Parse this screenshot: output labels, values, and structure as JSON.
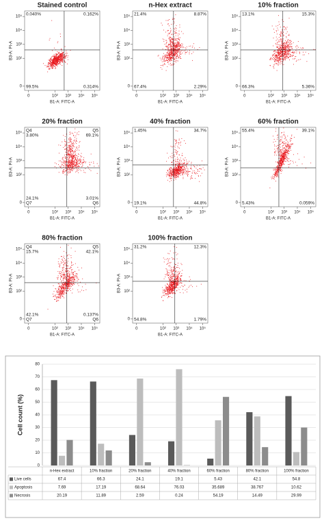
{
  "chart_data": [
    {
      "type": "flow",
      "title": "Stained control",
      "xlabel": "B1-A: FITC-A",
      "ylabel": "B3-A: PI-A",
      "xlim": [
        -0.3,
        5.4
      ],
      "ylim": [
        -0.3,
        5.4
      ],
      "xticks": [
        0,
        {
          "value": 2,
          "label": "10²"
        },
        {
          "value": 3,
          "label": "10³"
        },
        {
          "value": 4,
          "label": "10⁴"
        },
        {
          "value": 5,
          "label": "10⁵"
        }
      ],
      "yticks": [
        0,
        {
          "value": 2,
          "label": "10²"
        },
        {
          "value": 3,
          "label": "10³"
        },
        {
          "value": 4,
          "label": "10⁴"
        },
        {
          "value": 5,
          "label": "10⁵"
        }
      ],
      "gate": [
        2.7,
        2.6
      ],
      "quadrants": {
        "ul": "0.040%",
        "ur": "0.162%",
        "ll": "99.5%",
        "lr": "0.314%"
      }
    },
    {
      "type": "flow",
      "title": "n-Hex extract",
      "xlabel": "B1-A: FITC-A",
      "ylabel": "B3-A: PI-A",
      "xlim": [
        -0.3,
        5.4
      ],
      "ylim": [
        -0.3,
        5.4
      ],
      "xticks": [
        0,
        {
          "value": 2,
          "label": "10²"
        },
        {
          "value": 3,
          "label": "10³"
        },
        {
          "value": 4,
          "label": "10⁴"
        },
        {
          "value": 5,
          "label": "10⁵"
        }
      ],
      "yticks": [
        0,
        {
          "value": 2,
          "label": "10²"
        },
        {
          "value": 3,
          "label": "10³"
        },
        {
          "value": 4,
          "label": "10⁴"
        },
        {
          "value": 5,
          "label": "10⁵"
        }
      ],
      "gate": [
        2.8,
        2.6
      ],
      "quadrants": {
        "ul": "21.4%",
        "ur": "8.87%",
        "ll": "67.4%",
        "lr": "2.29%"
      }
    },
    {
      "type": "flow",
      "title": "10% fraction",
      "xlabel": "B1-A: FITC-A",
      "ylabel": "B3-A: PI-A",
      "xlim": [
        -0.3,
        5.4
      ],
      "ylim": [
        -0.3,
        5.4
      ],
      "xticks": [
        0,
        {
          "value": 2,
          "label": "10²"
        },
        {
          "value": 3,
          "label": "10³"
        },
        {
          "value": 4,
          "label": "10⁴"
        },
        {
          "value": 5,
          "label": "10⁵"
        }
      ],
      "yticks": [
        0,
        {
          "value": 2,
          "label": "10²"
        },
        {
          "value": 3,
          "label": "10³"
        },
        {
          "value": 4,
          "label": "10⁴"
        },
        {
          "value": 5,
          "label": "10⁵"
        }
      ],
      "gate": [
        2.9,
        2.6
      ],
      "quadrants": {
        "ul": "13.1%",
        "ur": "15.3%",
        "ll": "66.3%",
        "lr": "5.36%"
      }
    },
    {
      "type": "flow",
      "title": "20% fraction",
      "xlabel": "B1-A: FITC-A",
      "ylabel": "B3-A: PI-A",
      "xlim": [
        -0.3,
        5.4
      ],
      "ylim": [
        -0.3,
        5.4
      ],
      "xticks": [
        0,
        {
          "value": 2,
          "label": "10²"
        },
        {
          "value": 3,
          "label": "10³"
        },
        {
          "value": 4,
          "label": "10⁴"
        },
        {
          "value": 5,
          "label": "10⁵"
        }
      ],
      "yticks": [
        0,
        {
          "value": 2,
          "label": "10²"
        },
        {
          "value": 3,
          "label": "10³"
        },
        {
          "value": 4,
          "label": "10⁴"
        },
        {
          "value": 5,
          "label": "10⁵"
        }
      ],
      "gate": [
        2.9,
        2.5
      ],
      "quadrants": {
        "ul": "3.80%",
        "ur": "69.1%",
        "ll": "24.1%",
        "lr": "3.01%"
      },
      "quadrant_names": {
        "ul": "Q4",
        "ur": "Q5",
        "ll": "Q7",
        "lr": "Q6"
      }
    },
    {
      "type": "flow",
      "title": "40% fraction",
      "xlabel": "B1-A: FITC-A",
      "ylabel": "B3-A: PI-A",
      "xlim": [
        -0.3,
        5.4
      ],
      "ylim": [
        -0.3,
        5.4
      ],
      "xticks": [
        0,
        {
          "value": 2,
          "label": "10²"
        },
        {
          "value": 3,
          "label": "10³"
        },
        {
          "value": 4,
          "label": "10⁴"
        },
        {
          "value": 5,
          "label": "10⁵"
        }
      ],
      "yticks": [
        0,
        {
          "value": 2,
          "label": "10²"
        },
        {
          "value": 3,
          "label": "10³"
        },
        {
          "value": 4,
          "label": "10⁴"
        },
        {
          "value": 5,
          "label": "10⁵"
        }
      ],
      "gate": [
        2.8,
        2.7
      ],
      "quadrants": {
        "ul": "1.45%",
        "ur": "34.7%",
        "ll": "19.1%",
        "lr": "44.8%"
      }
    },
    {
      "type": "flow",
      "title": "60% fraction",
      "xlabel": "B1-A: FITC-A",
      "ylabel": "B3-A: PI-A",
      "xlim": [
        -0.3,
        5.4
      ],
      "ylim": [
        -0.3,
        5.4
      ],
      "xticks": [
        0,
        {
          "value": 2,
          "label": "10²"
        },
        {
          "value": 3,
          "label": "10³"
        },
        {
          "value": 4,
          "label": "10⁴"
        },
        {
          "value": 5,
          "label": "10⁵"
        }
      ],
      "yticks": [
        0,
        {
          "value": 2,
          "label": "10²"
        },
        {
          "value": 3,
          "label": "10³"
        },
        {
          "value": 4,
          "label": "10⁴"
        },
        {
          "value": 5,
          "label": "10⁵"
        }
      ],
      "gate": [
        2.6,
        2.5
      ],
      "quadrants": {
        "ul": "55.4%",
        "ur": "39.1%",
        "ll": "5.43%",
        "lr": "0.059%"
      }
    },
    {
      "type": "flow",
      "title": "80% fraction",
      "xlabel": "B1-A: FITC-A",
      "ylabel": "B3-A: PI-A",
      "xlim": [
        -0.3,
        5.4
      ],
      "ylim": [
        -0.3,
        5.4
      ],
      "xticks": [
        0,
        {
          "value": 2,
          "label": "10²"
        },
        {
          "value": 3,
          "label": "10³"
        },
        {
          "value": 4,
          "label": "10⁴"
        },
        {
          "value": 5,
          "label": "10⁵"
        }
      ],
      "yticks": [
        0,
        {
          "value": 2,
          "label": "10²"
        },
        {
          "value": 3,
          "label": "10³"
        },
        {
          "value": 4,
          "label": "10⁴"
        },
        {
          "value": 5,
          "label": "10⁵"
        }
      ],
      "gate": [
        2.9,
        2.6
      ],
      "quadrants": {
        "ul": "15.7%",
        "ur": "42.1%",
        "ll": "42.1%",
        "lr": "0.137%"
      },
      "quadrant_names": {
        "ul": "Q4",
        "ur": "Q5",
        "ll": "Q7",
        "lr": "Q6"
      }
    },
    {
      "type": "flow",
      "title": "100% fraction",
      "xlabel": "B1-A: FITC-A",
      "ylabel": "B3-A: PI-A",
      "xlim": [
        -0.3,
        5.4
      ],
      "ylim": [
        -0.3,
        5.4
      ],
      "xticks": [
        0,
        {
          "value": 2,
          "label": "10²"
        },
        {
          "value": 3,
          "label": "10³"
        },
        {
          "value": 4,
          "label": "10⁴"
        },
        {
          "value": 5,
          "label": "10⁵"
        }
      ],
      "yticks": [
        0,
        {
          "value": 2,
          "label": "10²"
        },
        {
          "value": 3,
          "label": "10³"
        },
        {
          "value": 4,
          "label": "10⁴"
        },
        {
          "value": 5,
          "label": "10⁵"
        }
      ],
      "gate": [
        2.9,
        2.7
      ],
      "quadrants": {
        "ul": "31.2%",
        "ur": "12.3%",
        "ll": "54.8%",
        "lr": "1.79%"
      }
    },
    {
      "type": "bar",
      "ylabel": "Cell count (%)",
      "categories": [
        "n-Hex extract",
        "10% fraction",
        "20% fraction",
        "40% fraction",
        "60% fraction",
        "80% fraction",
        "100% fraction"
      ],
      "series": [
        {
          "name": "Live cells",
          "color": "#5a5a5a",
          "values": [
            67.4,
            66.3,
            24.1,
            19.1,
            5.43,
            42.1,
            54.8
          ]
        },
        {
          "name": "Apoptosis",
          "color": "#bdbdbd",
          "values": [
            7.69,
            17.19,
            68.64,
            76.03,
            35.689,
            38.767,
            10.62
          ]
        },
        {
          "name": "Necrosis",
          "color": "#8c8c8c",
          "values": [
            20.19,
            11.89,
            2.59,
            0.24,
            54.19,
            14.49,
            29.99
          ]
        }
      ],
      "ylim": [
        0,
        80
      ],
      "yticks": [
        0,
        10,
        20,
        30,
        40,
        50,
        60,
        70,
        80
      ],
      "grid": true
    }
  ]
}
